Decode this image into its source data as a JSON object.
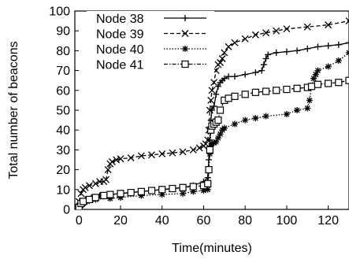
{
  "chart_data": {
    "type": "line",
    "title": "",
    "xlabel": "Time(minutes)",
    "ylabel": "Total number of beacons",
    "xlim": [
      -2,
      130
    ],
    "ylim": [
      0,
      100
    ],
    "xticks": [
      0,
      20,
      40,
      60,
      80,
      100,
      120
    ],
    "yticks": [
      0,
      10,
      20,
      30,
      40,
      50,
      60,
      70,
      80,
      90,
      100
    ],
    "grid": false,
    "legend_position": "top-left",
    "series": [
      {
        "name": "Node 38",
        "marker": "plus",
        "dash": "solid",
        "x": [
          0,
          1,
          3,
          6,
          10,
          20,
          30,
          40,
          50,
          55,
          60,
          62,
          62.5,
          63,
          63.5,
          64,
          65,
          66,
          67,
          68,
          69,
          70,
          72,
          75,
          80,
          85,
          88,
          89,
          90,
          91,
          95,
          100,
          105,
          110,
          115,
          120,
          125,
          130
        ],
        "y": [
          1,
          4,
          5,
          6,
          7,
          8,
          9,
          10,
          11,
          12,
          14,
          16,
          25,
          35,
          45,
          50,
          52,
          58,
          62,
          64,
          65,
          66,
          67,
          67,
          68,
          69,
          70,
          73,
          76,
          78,
          79,
          79.5,
          80,
          81,
          82,
          82.5,
          83,
          84
        ]
      },
      {
        "name": "Node 39",
        "marker": "x",
        "dash": "dashed",
        "x": [
          0,
          1,
          2,
          3,
          5,
          8,
          10,
          12,
          13,
          14,
          15,
          16,
          18,
          20,
          25,
          30,
          35,
          40,
          45,
          50,
          55,
          58,
          60,
          61,
          62,
          62.5,
          63,
          63.5,
          64,
          65,
          66,
          67,
          68,
          69,
          70,
          72,
          75,
          80,
          85,
          90,
          95,
          100,
          110,
          120,
          130
        ],
        "y": [
          4,
          8,
          10,
          11,
          12,
          13,
          14,
          14,
          15,
          20,
          23,
          24,
          25,
          25.5,
          26,
          27,
          27.5,
          28,
          28.5,
          29,
          30,
          31,
          32,
          33,
          35,
          40,
          50,
          55,
          60,
          64,
          70,
          73,
          74,
          76,
          79,
          82,
          84,
          86,
          88,
          89,
          90,
          91,
          92,
          93,
          95
        ]
      },
      {
        "name": "Node 40",
        "marker": "star",
        "dash": "dotted",
        "x": [
          0,
          1,
          2,
          4,
          8,
          15,
          20,
          30,
          40,
          50,
          55,
          60,
          62,
          62.5,
          63,
          63.5,
          64,
          65,
          66,
          67,
          68,
          69,
          70,
          75,
          80,
          85,
          90,
          100,
          105,
          110,
          111,
          112,
          113,
          114,
          115,
          120,
          125,
          130
        ],
        "y": [
          0,
          2,
          3,
          4,
          5,
          5.5,
          6,
          7,
          7.5,
          8,
          9,
          9.5,
          10,
          20,
          28,
          32,
          33,
          33.5,
          34,
          36,
          38,
          40,
          41,
          43,
          45,
          46,
          47,
          48,
          50,
          51,
          55,
          62,
          66,
          68,
          70,
          72,
          75,
          79
        ]
      },
      {
        "name": "Node 41",
        "marker": "square",
        "dash": "dashdot",
        "x": [
          0,
          1,
          2,
          5,
          8,
          12,
          15,
          20,
          25,
          30,
          35,
          40,
          45,
          50,
          55,
          60,
          62,
          62.5,
          63,
          63.5,
          64,
          65,
          66,
          67,
          68,
          70,
          72,
          75,
          80,
          85,
          90,
          95,
          100,
          105,
          110,
          112,
          115,
          120,
          125,
          130
        ],
        "y": [
          1,
          3,
          4,
          5,
          6,
          7,
          7.5,
          8,
          8.5,
          9,
          9.5,
          10,
          10.5,
          11,
          11.5,
          12,
          13,
          20,
          30,
          40,
          42,
          43,
          44,
          45,
          50,
          55,
          56,
          57,
          58,
          59,
          59.5,
          60,
          60.5,
          61,
          61.5,
          62,
          63,
          63.5,
          64,
          65
        ]
      }
    ]
  }
}
